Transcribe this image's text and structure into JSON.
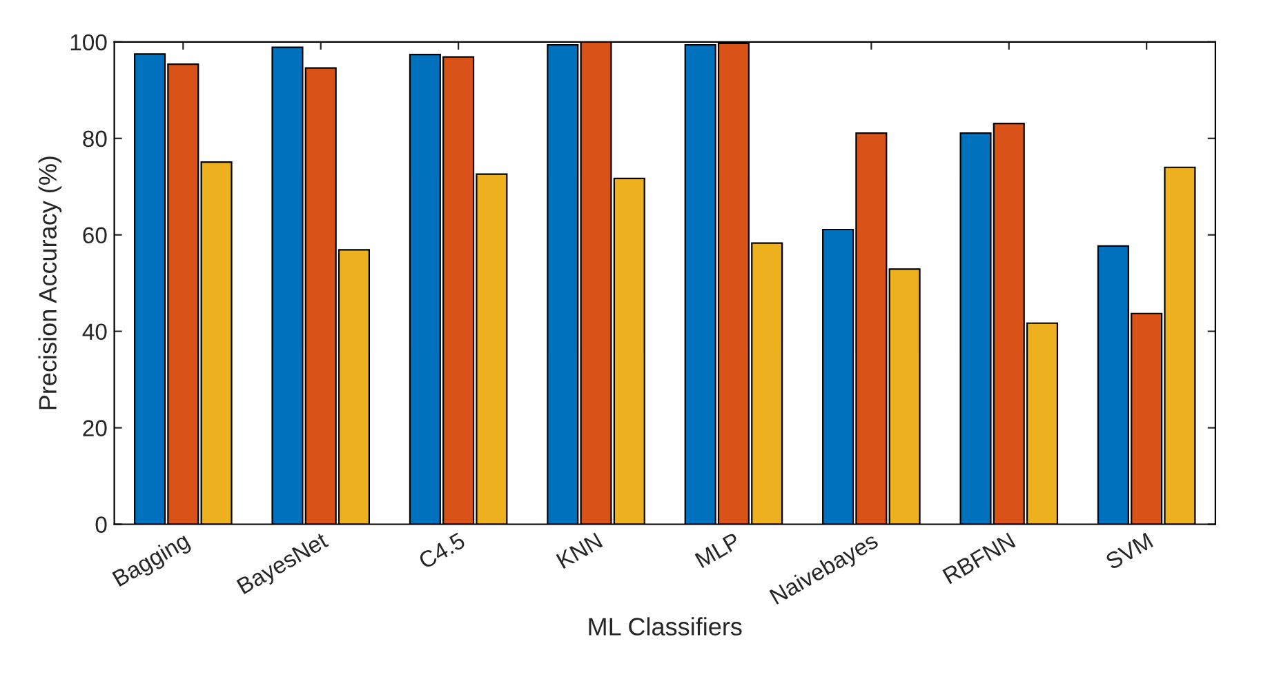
{
  "chart_data": {
    "type": "bar",
    "xlabel": "ML Classifiers",
    "ylabel": "Precision Accuracy (%)",
    "categories": [
      "Bagging",
      "BayesNet",
      "C4.5",
      "KNN",
      "MLP",
      "Naivebayes",
      "RBFNN",
      "SVM"
    ],
    "series": [
      {
        "color": "#0072bd",
        "values": [
          97.5,
          98.9,
          97.4,
          99.4,
          99.4,
          61.1,
          81.1,
          57.7
        ]
      },
      {
        "color": "#d95319",
        "values": [
          95.4,
          94.6,
          96.9,
          100,
          99.7,
          81.1,
          83.1,
          43.7
        ]
      },
      {
        "color": "#edb120",
        "values": [
          75.1,
          56.9,
          72.6,
          71.7,
          58.3,
          52.9,
          41.7,
          74.0
        ]
      }
    ],
    "ylim": [
      0,
      100
    ],
    "yticks": [
      0,
      20,
      40,
      60,
      80,
      100
    ],
    "grid": false,
    "legend": false
  }
}
